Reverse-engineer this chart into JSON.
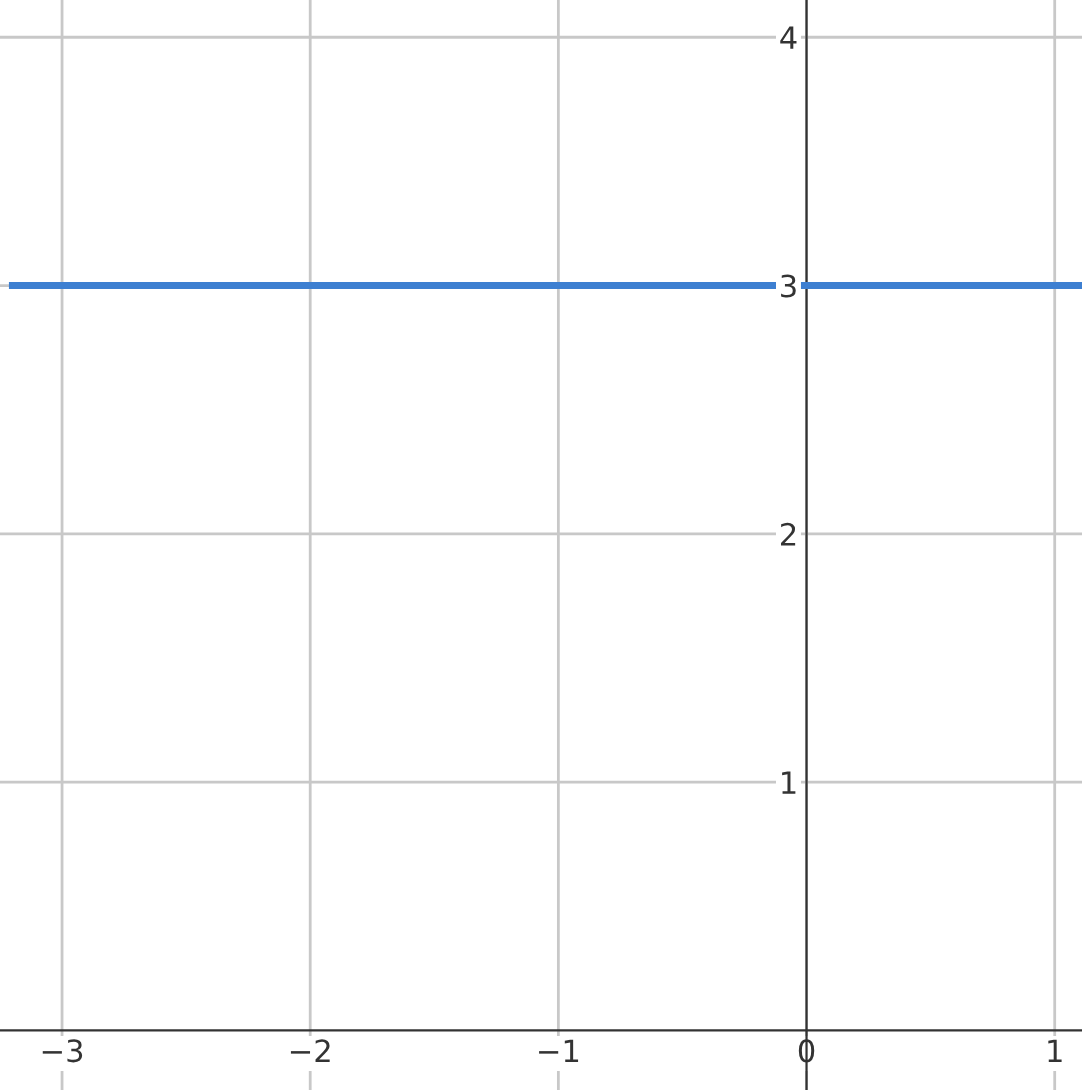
{
  "chart_data": {
    "type": "line",
    "x": [
      -3.2,
      1.1
    ],
    "series": [
      {
        "color": "#3d7fd1",
        "values": [
          3,
          3
        ]
      }
    ],
    "xlim": [
      -3.25,
      1.11
    ],
    "ylim": [
      -0.24,
      4.15
    ],
    "xticks": [
      -3,
      -2,
      -1,
      0,
      1
    ],
    "yticks": [
      1,
      2,
      3,
      4
    ],
    "grid": true,
    "line_style": "solid",
    "marker": "none"
  }
}
